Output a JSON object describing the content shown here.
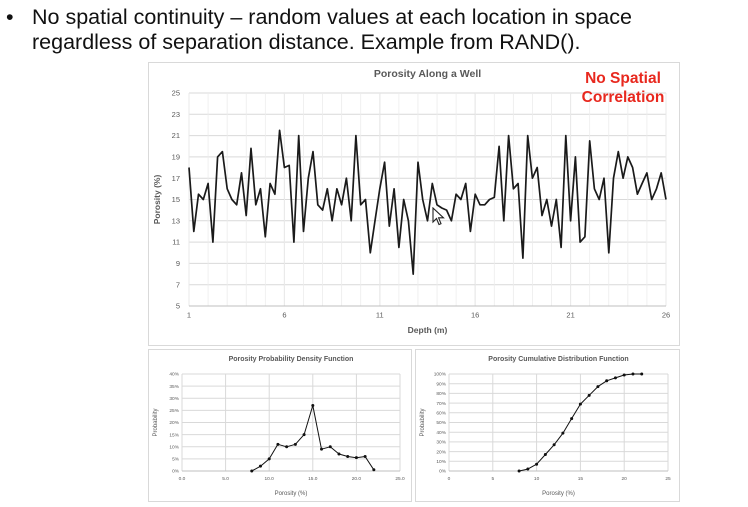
{
  "bullet": {
    "dot": "•",
    "text": "No spatial continuity – random values at each location in space\nregardless of separation distance.  Example from RAND()."
  },
  "annotation": {
    "text": "No Spatial\nCorrelation",
    "color": "#e8281e"
  },
  "chart_data": [
    {
      "type": "line",
      "title": "Porosity Along a Well",
      "xlabel": "Depth (m)",
      "ylabel": "Porosity (%)",
      "xlim": [
        1,
        26
      ],
      "ylim": [
        5,
        25
      ],
      "xticks": [
        1,
        6,
        11,
        16,
        21,
        26
      ],
      "xtick_labels": [
        "1",
        "6",
        "11",
        "16",
        "21",
        "26"
      ],
      "yticks": [
        5,
        7,
        9,
        11,
        13,
        15,
        17,
        19,
        21,
        23,
        25
      ],
      "ytick_labels": [
        "5",
        "7",
        "9",
        "11",
        "13",
        "15",
        "17",
        "19",
        "21",
        "23",
        "25"
      ],
      "grid": true,
      "line_color": "#1a1a1a",
      "x": [
        1.0,
        1.25,
        1.5,
        1.75,
        2.0,
        2.25,
        2.5,
        2.75,
        3.0,
        3.25,
        3.5,
        3.75,
        4.0,
        4.25,
        4.5,
        4.75,
        5.0,
        5.25,
        5.5,
        5.75,
        6.0,
        6.25,
        6.5,
        6.75,
        7.0,
        7.25,
        7.5,
        7.75,
        8.0,
        8.25,
        8.5,
        8.75,
        9.0,
        9.25,
        9.5,
        9.75,
        10.0,
        10.25,
        10.5,
        10.75,
        11.0,
        11.25,
        11.5,
        11.75,
        12.0,
        12.25,
        12.5,
        12.75,
        13.0,
        13.25,
        13.5,
        13.75,
        14.0,
        14.25,
        14.5,
        14.75,
        15.0,
        15.25,
        15.5,
        15.75,
        16.0,
        16.25,
        16.5,
        16.75,
        17.0,
        17.25,
        17.5,
        17.75,
        18.0,
        18.25,
        18.5,
        18.75,
        19.0,
        19.25,
        19.5,
        19.75,
        20.0,
        20.25,
        20.5,
        20.75,
        21.0,
        21.25,
        21.5,
        21.75,
        22.0,
        22.25,
        22.5,
        22.75,
        23.0,
        23.25,
        23.5,
        23.75,
        24.0,
        24.25,
        24.5,
        24.75,
        25.0,
        25.25,
        25.5,
        25.75,
        26.0
      ],
      "y": [
        18,
        12,
        15.5,
        15,
        16.5,
        11,
        19,
        19.5,
        16,
        15,
        14.5,
        17.5,
        13.5,
        19.8,
        14.5,
        16,
        11.5,
        16.5,
        15.5,
        21.5,
        18,
        18.2,
        11,
        21,
        12,
        17,
        19.5,
        14.5,
        14,
        16,
        13,
        16,
        14.5,
        17,
        13,
        21,
        14.5,
        15,
        10,
        13,
        16,
        18.5,
        12.5,
        16,
        10.5,
        15,
        13,
        8,
        18.5,
        15,
        13,
        16.5,
        14.5,
        14.2,
        14,
        13,
        15.5,
        15,
        16.5,
        12,
        15.5,
        14.5,
        14.5,
        15,
        15.2,
        20,
        13,
        21,
        16,
        16.5,
        9.5,
        21,
        17,
        18,
        13.5,
        15,
        12.5,
        15,
        10.5,
        21,
        13,
        19,
        11,
        11.5,
        20.5,
        16,
        15,
        17,
        10,
        17,
        19.5,
        17,
        19,
        18,
        15.5,
        16.5,
        17.5,
        15,
        16,
        17.5,
        15
      ]
    },
    {
      "type": "line",
      "title": "Porosity Probability Density Function",
      "xlabel": "Porosity (%)",
      "ylabel": "Probability",
      "xlim": [
        0,
        25
      ],
      "ylim": [
        0,
        0.4
      ],
      "xtick_labels": [
        "0.0",
        "5.0",
        "10.0",
        "15.0",
        "20.0",
        "25.0"
      ],
      "ytick_labels": [
        "0%",
        "5%",
        "10%",
        "15%",
        "20%",
        "25%",
        "30%",
        "35%",
        "40%"
      ],
      "grid": true,
      "markers": true,
      "x": [
        8,
        9,
        10,
        11,
        12,
        13,
        14,
        15,
        16,
        17,
        18,
        19,
        20,
        21,
        22
      ],
      "y": [
        0.0,
        0.02,
        0.05,
        0.11,
        0.1,
        0.11,
        0.15,
        0.27,
        0.09,
        0.1,
        0.07,
        0.06,
        0.055,
        0.06,
        0.005
      ]
    },
    {
      "type": "line",
      "title": "Porosity Cumulative Distribution Function",
      "xlabel": "Porosity (%)",
      "ylabel": "Probability",
      "xlim": [
        0,
        25
      ],
      "ylim": [
        0,
        1.0
      ],
      "xtick_labels": [
        "0",
        "5",
        "10",
        "15",
        "20",
        "25"
      ],
      "ytick_labels": [
        "0%",
        "10%",
        "20%",
        "30%",
        "40%",
        "50%",
        "60%",
        "70%",
        "80%",
        "90%",
        "100%"
      ],
      "grid": true,
      "markers": true,
      "x": [
        8,
        9,
        10,
        11,
        12,
        13,
        14,
        15,
        16,
        17,
        18,
        19,
        20,
        21,
        22
      ],
      "y": [
        0.0,
        0.02,
        0.07,
        0.17,
        0.27,
        0.39,
        0.54,
        0.69,
        0.78,
        0.87,
        0.93,
        0.96,
        0.99,
        1.0,
        1.0
      ]
    }
  ]
}
